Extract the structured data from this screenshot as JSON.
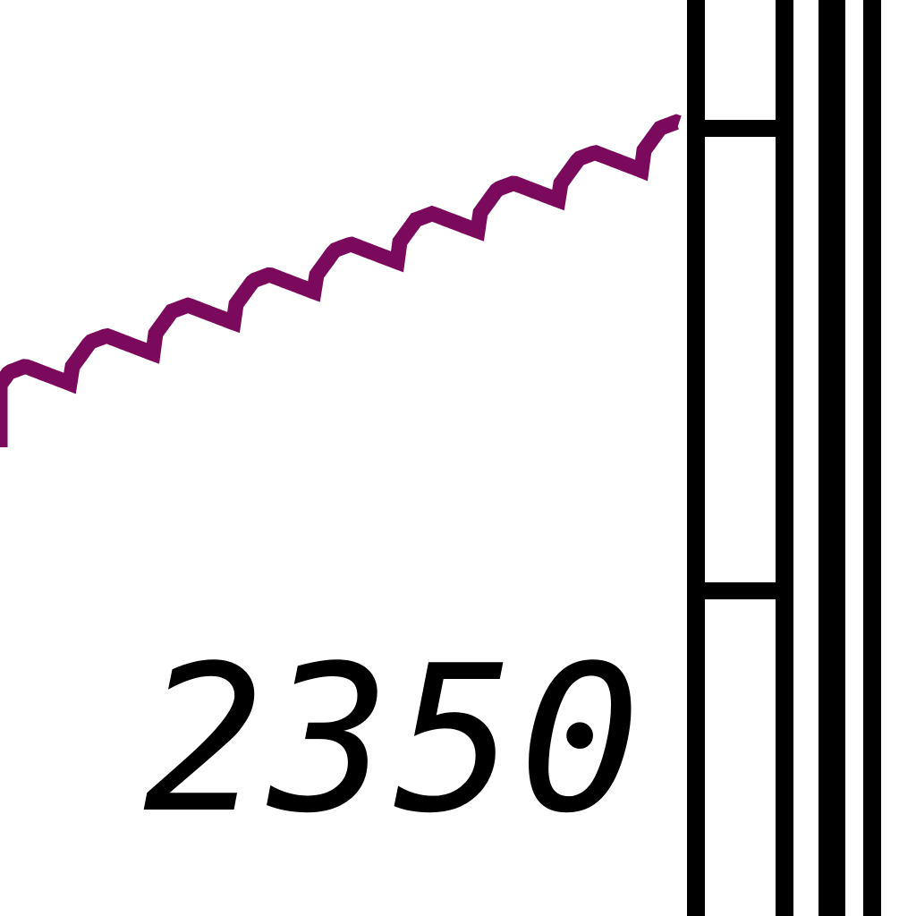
{
  "chart_data": {
    "type": "line",
    "title": "",
    "xlabel": "",
    "ylabel": "",
    "x_tick_labels": [
      "2350"
    ],
    "series": [
      {
        "color": "#7b0a5c",
        "x": [
          0,
          1,
          2,
          3,
          4,
          5,
          6,
          7,
          8,
          9,
          10,
          11,
          12,
          13,
          14,
          15,
          16,
          17,
          18,
          19,
          20,
          21,
          22,
          23,
          24,
          25,
          26,
          27,
          28,
          29,
          30,
          31,
          32,
          33,
          34,
          35,
          36,
          37,
          38,
          39,
          40,
          41,
          42,
          43,
          44,
          45,
          46,
          47,
          48,
          49,
          50,
          51,
          52,
          53,
          54,
          55,
          56,
          57,
          58,
          59,
          60,
          61,
          62,
          63,
          64,
          65,
          66,
          67,
          68,
          69,
          70,
          71,
          72,
          73,
          74,
          75,
          76,
          77,
          78,
          79,
          80,
          81,
          82,
          83,
          84,
          85,
          86,
          87,
          88,
          89,
          90,
          91,
          92,
          93,
          94,
          95,
          96,
          97,
          98,
          99,
          100,
          101,
          102,
          103,
          104,
          105,
          106,
          107,
          108,
          109,
          110,
          111,
          112,
          113,
          114,
          115,
          116,
          117,
          118,
          119,
          120,
          121,
          122,
          123,
          124,
          125,
          126,
          127,
          128,
          129,
          130,
          131,
          132,
          133,
          134,
          135,
          136,
          137,
          138,
          139,
          140,
          141,
          142,
          143,
          144,
          145,
          146,
          147,
          148,
          149,
          150,
          151,
          152,
          153,
          154,
          155,
          156,
          157,
          158,
          159,
          160,
          161,
          162,
          163,
          164,
          165,
          166,
          167,
          168,
          169,
          170,
          171,
          172,
          173,
          174,
          175,
          176,
          177,
          178,
          179,
          180,
          181,
          182,
          183,
          184,
          185,
          186,
          187,
          188,
          189,
          190,
          191,
          192,
          193,
          194,
          195,
          196,
          197,
          198,
          199,
          200,
          201,
          202,
          203,
          204,
          205,
          206,
          207,
          208,
          209,
          210,
          211,
          212,
          213,
          214,
          215,
          216,
          217,
          218,
          219,
          220,
          221,
          222,
          223,
          224,
          225,
          226,
          227,
          228,
          229,
          230,
          231,
          232,
          233,
          234,
          235,
          236,
          237,
          238,
          239,
          240,
          241,
          242,
          243,
          244,
          245,
          246,
          247,
          248,
          249,
          250,
          251,
          252,
          253,
          254,
          255,
          256,
          257,
          258,
          259,
          260,
          261,
          262,
          263,
          264,
          265,
          266,
          267,
          268,
          269,
          270,
          271,
          272,
          273,
          274,
          275,
          276,
          277,
          278,
          279,
          280,
          281,
          282,
          283,
          284,
          285,
          286,
          287,
          288,
          289,
          290,
          291,
          292,
          293,
          294,
          295,
          296,
          297,
          298,
          299,
          300,
          301,
          302,
          303,
          304,
          305,
          306,
          307,
          308,
          309,
          310,
          311,
          312,
          313,
          314,
          315,
          316,
          317,
          318,
          319,
          320,
          321,
          322,
          323,
          324,
          325,
          326,
          327,
          328,
          329,
          330,
          331,
          332,
          333,
          334,
          335,
          336,
          337,
          338,
          339,
          340,
          341,
          342,
          343,
          344,
          345,
          346,
          347,
          348,
          349,
          350,
          351,
          352,
          353,
          354,
          355,
          356,
          357,
          358,
          359,
          360,
          361,
          362,
          363,
          364,
          365,
          366,
          367,
          368,
          369,
          370,
          371,
          372,
          373,
          374,
          375,
          376,
          377,
          378,
          379,
          380,
          381,
          382,
          383,
          384,
          385,
          386,
          387,
          388,
          389,
          390,
          391,
          392,
          393,
          394,
          395,
          396,
          397,
          398,
          399,
          400,
          401,
          402,
          403,
          404,
          405,
          406,
          407,
          408,
          409,
          410,
          411,
          412,
          413,
          414,
          415,
          416,
          417,
          418,
          419,
          420,
          421,
          422,
          423,
          424,
          425,
          426,
          427,
          428,
          429,
          430,
          431,
          432,
          433,
          434,
          435,
          436,
          437,
          438,
          439,
          440,
          441,
          442,
          443,
          444,
          445,
          446,
          447,
          448,
          449,
          450,
          451,
          452,
          453,
          454,
          455,
          456,
          457,
          458,
          459,
          460,
          461,
          462,
          463,
          464,
          465,
          466,
          467,
          468,
          469,
          470,
          471,
          472,
          473,
          474,
          475,
          476,
          477,
          478,
          479,
          480,
          481,
          482,
          483,
          484,
          485,
          486,
          487,
          488,
          489,
          490,
          491,
          492,
          493,
          494,
          495,
          496,
          497,
          498,
          499,
          500,
          501,
          502,
          503,
          504,
          505,
          506,
          507,
          508,
          509,
          510,
          511,
          512,
          513,
          514,
          515,
          516,
          517,
          518,
          519,
          520,
          521,
          522,
          523,
          524,
          525,
          526,
          527,
          528,
          529,
          530,
          531,
          532,
          533,
          534,
          535,
          536,
          537,
          538,
          539,
          540,
          541,
          542,
          543,
          544,
          545,
          546,
          547,
          548,
          549,
          550,
          551,
          552,
          553,
          554,
          555,
          556,
          557,
          558,
          559,
          560,
          561,
          562,
          563,
          564,
          565,
          566,
          567,
          568,
          569,
          570,
          571,
          572,
          573,
          574,
          575,
          576,
          577,
          578,
          579,
          580,
          581,
          582,
          583,
          584,
          585,
          586,
          587,
          588,
          589,
          590,
          591,
          592,
          593,
          594,
          595,
          596,
          597,
          598,
          599,
          600,
          601,
          602,
          603,
          604,
          605,
          606,
          607,
          608,
          609,
          610,
          611,
          612,
          613,
          614,
          615,
          616,
          617,
          618,
          619,
          620,
          621,
          622,
          623,
          624,
          625,
          626,
          627,
          628,
          629,
          630,
          631,
          632,
          633,
          634,
          635,
          636,
          637,
          638,
          639,
          640,
          641,
          642,
          643,
          644,
          645,
          646,
          647,
          648,
          649,
          650,
          651,
          652,
          653,
          654,
          655,
          656,
          657,
          658,
          659,
          660,
          661,
          662,
          663,
          664,
          665,
          666,
          667,
          668,
          669,
          670,
          671,
          672,
          673,
          674,
          675,
          676,
          677,
          678,
          679,
          680,
          681,
          682,
          683,
          684,
          685,
          686,
          687,
          688,
          689,
          690,
          691,
          692,
          693,
          694,
          695,
          696,
          697,
          698,
          699,
          700,
          701,
          702,
          703,
          704,
          705,
          706,
          707,
          708,
          709,
          710,
          711,
          712,
          713,
          714,
          715,
          716,
          717,
          718,
          719,
          720,
          721,
          722,
          723,
          724,
          725,
          726,
          727,
          728,
          729,
          730,
          731,
          732,
          733,
          734,
          735,
          736,
          737,
          738,
          739,
          740,
          741,
          742,
          743,
          744,
          745,
          746,
          747,
          748,
          749,
          750,
          751,
          752,
          753,
          754,
          755,
          756,
          757,
          758,
          759,
          760
        ]
      }
    ]
  }
}
